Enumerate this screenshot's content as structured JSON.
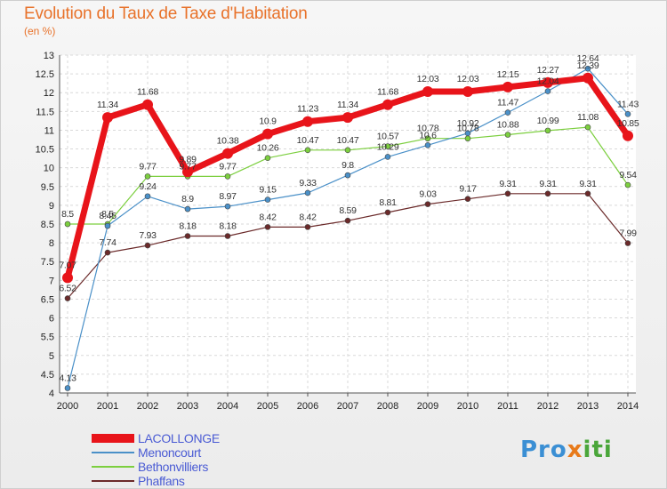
{
  "header": {
    "title": "Evolution du Taux de Taxe d'Habitation",
    "subtitle": "(en %)"
  },
  "logo": {
    "text_part1": "Pro",
    "text_part2": "x",
    "text_part3": "iti"
  },
  "chart_data": {
    "type": "line",
    "title": "Evolution du Taux de Taxe d'Habitation",
    "subtitle": "(en %)",
    "xlabel": "",
    "ylabel": "",
    "ylim": [
      4,
      13
    ],
    "y_ticks": [
      "4",
      "4.5",
      "5",
      "5.5",
      "6",
      "6.5",
      "7",
      "7.5",
      "8",
      "8.5",
      "9",
      "9.5",
      "10",
      "10.5",
      "11",
      "11.5",
      "12",
      "12.5",
      "13"
    ],
    "grid": true,
    "legend_position": "bottom-left",
    "x": [
      "2000",
      "2001",
      "2002",
      "2003",
      "2004",
      "2005",
      "2006",
      "2007",
      "2008",
      "2009",
      "2010",
      "2011",
      "2012",
      "2013",
      "2014"
    ],
    "series": [
      {
        "name": "LACOLLONGE",
        "color": "#e8141a",
        "values": [
          7.07,
          11.34,
          11.68,
          9.89,
          10.38,
          10.9,
          11.23,
          11.34,
          11.68,
          12.03,
          12.03,
          12.15,
          12.27,
          12.39,
          10.85
        ],
        "labels": [
          "7.07",
          "11.34",
          "11.68",
          "9.89",
          "10.38",
          "10.9",
          "11.23",
          "11.34",
          "11.68",
          "12.03",
          "12.03",
          "12.15",
          "12.27",
          "12.39",
          "10.85"
        ]
      },
      {
        "name": "Menoncourt",
        "color": "#4a90c8",
        "values": [
          4.13,
          8.45,
          9.24,
          8.9,
          8.97,
          9.15,
          9.33,
          9.8,
          10.29,
          10.6,
          10.92,
          11.47,
          12.04,
          12.64,
          11.43
        ],
        "labels": [
          "4.13",
          "8.45",
          "9.24",
          "8.9",
          "8.97",
          "9.15",
          "9.33",
          "9.8",
          "10.29",
          "10.6",
          "10.92",
          "11.47",
          "12.04",
          "12.64",
          "11.43"
        ]
      },
      {
        "name": "Bethonvilliers",
        "color": "#7ccf3f",
        "values": [
          8.5,
          8.5,
          9.77,
          9.77,
          9.77,
          10.26,
          10.47,
          10.47,
          10.57,
          10.78,
          10.78,
          10.88,
          10.99,
          11.08,
          9.54
        ],
        "labels": [
          "8.5",
          "8.5",
          "9.77",
          "9.77",
          "9.77",
          "10.26",
          "10.47",
          "10.47",
          "10.57",
          "10.78",
          "10.78",
          "10.88",
          "10.99",
          "11.08",
          "9.54"
        ]
      },
      {
        "name": "Phaffans",
        "color": "#6b2a2a",
        "values": [
          6.52,
          7.74,
          7.93,
          8.18,
          8.18,
          8.42,
          8.42,
          8.59,
          8.81,
          9.03,
          9.17,
          9.31,
          9.31,
          9.31,
          7.99
        ],
        "labels": [
          "6.52",
          "7.74",
          "7.93",
          "8.18",
          "8.18",
          "8.42",
          "8.42",
          "8.59",
          "8.81",
          "9.03",
          "9.17",
          "9.31",
          "9.31",
          "9.31",
          "7.99"
        ]
      }
    ]
  }
}
